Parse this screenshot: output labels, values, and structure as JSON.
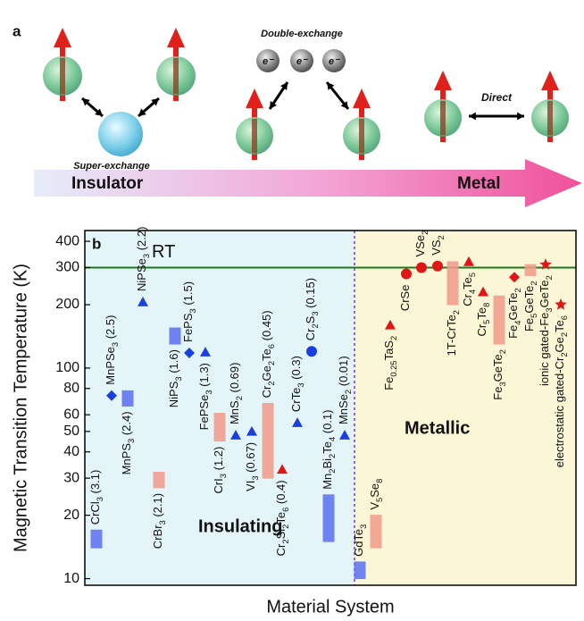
{
  "diagram": {
    "panel_label": "a",
    "super_exchange": "Super-exchange",
    "double_exchange": "Double-exchange",
    "electrons": [
      "e⁻",
      "e⁻",
      "e⁻"
    ],
    "direct": "Direct",
    "insulator": "Insulator",
    "metal": "Metal"
  },
  "chart_data": {
    "type": "range",
    "panel_label": "b",
    "ylabel": "Magnetic Transition Temperature (K)",
    "xlabel": "Material System",
    "log_y": true,
    "ylim": [
      9.3,
      450
    ],
    "yticks": [
      10,
      20,
      30,
      40,
      50,
      60,
      80,
      100,
      200,
      300,
      400
    ],
    "reference_line": {
      "label": "RT",
      "value": 300,
      "color": "#1a7a1a"
    },
    "regions": [
      {
        "label": "Insulating",
        "color": "#e4f5fa"
      },
      {
        "label": "Metallic",
        "color": "#fbf7d6"
      }
    ],
    "materials": [
      {
        "label": "CrCl3 (3.1)",
        "marker": "bar",
        "color": "#5a6ff0",
        "values": [
          14,
          17
        ]
      },
      {
        "label": "MnPSe3 (2.5)",
        "marker": "diamond",
        "color": "#1a3fe0",
        "values": [
          74
        ]
      },
      {
        "label": "MnPS3 (2.4)",
        "marker": "bar",
        "color": "#5a6ff0",
        "values": [
          66,
          78
        ]
      },
      {
        "label": "NiPSe3 (2.2)",
        "marker": "triangle",
        "color": "#1a3fe0",
        "values": [
          206
        ]
      },
      {
        "label": "CrBr3 (2.1)",
        "marker": "bar",
        "color": "#f29a8a",
        "values": [
          27,
          32
        ]
      },
      {
        "label": "NiPS3 (1.6)",
        "marker": "bar",
        "color": "#5a6ff0",
        "values": [
          130,
          155
        ]
      },
      {
        "label": "FePS3 (1.5)",
        "marker": "diamond",
        "color": "#1a3fe0",
        "values": [
          118
        ]
      },
      {
        "label": "FePSe3 (1.3)",
        "marker": "triangle",
        "color": "#1a3fe0",
        "values": [
          119
        ]
      },
      {
        "label": "CrI3 (1.2)",
        "marker": "bar",
        "color": "#f29a8a",
        "values": [
          45,
          61
        ]
      },
      {
        "label": "MnS2 (0.69)",
        "marker": "triangle",
        "color": "#1a3fe0",
        "values": [
          48
        ]
      },
      {
        "label": "VI3 (0.67)",
        "marker": "triangle",
        "color": "#1a3fe0",
        "values": [
          50
        ]
      },
      {
        "label": "Cr2Ge2Te6 (0.45)",
        "marker": "bar",
        "color": "#f29a8a",
        "values": [
          30,
          68
        ]
      },
      {
        "label": "Cr2Si2Te6 (0.4)",
        "marker": "triangle",
        "color": "#e01515",
        "values": [
          33
        ]
      },
      {
        "label": "CrTe3 (0.3)",
        "marker": "triangle",
        "color": "#1a3fe0",
        "values": [
          55
        ]
      },
      {
        "label": "Cr2S3 (0.15)",
        "marker": "circle",
        "color": "#1a3fe0",
        "values": [
          120
        ]
      },
      {
        "label": "Mn2Bi2Te4 (0.1)",
        "marker": "bar",
        "color": "#5a6ff0",
        "values": [
          15,
          25
        ]
      },
      {
        "label": "MnSe2 (0.01)",
        "marker": "triangle",
        "color": "#1a3fe0",
        "values": [
          48
        ]
      },
      {
        "label": "GdTe3",
        "marker": "bar",
        "color": "#5a6ff0",
        "values": [
          10,
          12
        ]
      },
      {
        "label": "V5Se8",
        "marker": "bar",
        "color": "#f29a8a",
        "values": [
          14,
          20
        ]
      },
      {
        "label": "Fe0.25TaS2",
        "marker": "triangle",
        "color": "#e01515",
        "values": [
          160
        ]
      },
      {
        "label": "CrSe",
        "marker": "circle",
        "color": "#e01515",
        "values": [
          280
        ]
      },
      {
        "label": "VSe2",
        "marker": "circle",
        "color": "#e01515",
        "values": [
          300
        ]
      },
      {
        "label": "VS2",
        "marker": "circle",
        "color": "#e01515",
        "values": [
          305
        ]
      },
      {
        "label": "1T-CrTe2",
        "marker": "bar",
        "color": "#f29a8a",
        "values": [
          200,
          320
        ]
      },
      {
        "label": "Cr4Te5",
        "marker": "triangle",
        "color": "#e01515",
        "values": [
          320
        ]
      },
      {
        "label": "Cr5Te8",
        "marker": "triangle",
        "color": "#e01515",
        "values": [
          230
        ]
      },
      {
        "label": "Fe3GeTe2",
        "marker": "bar",
        "color": "#f29a8a",
        "values": [
          130,
          220
        ]
      },
      {
        "label": "Fe4GeTe2",
        "marker": "diamond",
        "color": "#e01515",
        "values": [
          270
        ]
      },
      {
        "label": "Fe5GeTe2",
        "marker": "bar",
        "color": "#f29a8a",
        "values": [
          275,
          310
        ]
      },
      {
        "label": "ionic gated-Fe3GeTe2",
        "marker": "star",
        "color": "#e01515",
        "values": [
          310
        ]
      },
      {
        "label": "electrostatic gated-Cr2Ge2Te6",
        "marker": "star",
        "color": "#e01515",
        "values": [
          200
        ]
      }
    ]
  }
}
